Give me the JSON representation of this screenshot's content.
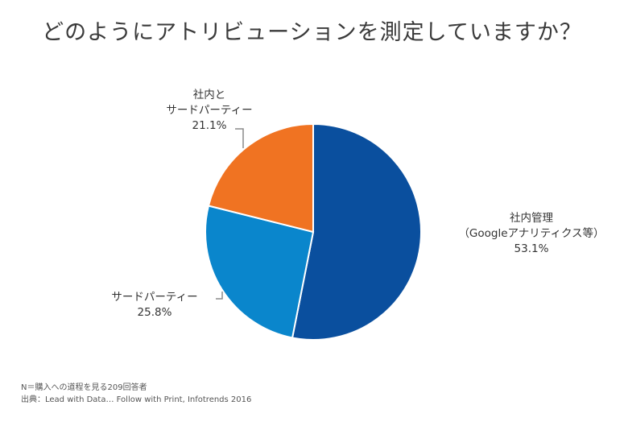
{
  "title": "どのようにアトリビューションを測定していますか？",
  "chart_data": {
    "type": "pie",
    "slices": [
      {
        "label_lines": [
          "社内管理",
          "（Googleアナリティクス等）"
        ],
        "value": 53.1,
        "value_label": "53.1%",
        "color": "#0a4f9e"
      },
      {
        "label_lines": [
          "サードパーティー"
        ],
        "value": 25.8,
        "value_label": "25.8%",
        "color": "#0a86cc"
      },
      {
        "label_lines": [
          "社内と",
          "サードパーティー"
        ],
        "value": 21.1,
        "value_label": "21.1%",
        "color": "#f07322"
      }
    ],
    "start_angle": "12 o'clock",
    "direction": "clockwise"
  },
  "footnotes": {
    "sample": "N＝購入への道程を見る209回答者",
    "source": "出典：Lead with Data… Follow with Print, Infotrends 2016"
  }
}
